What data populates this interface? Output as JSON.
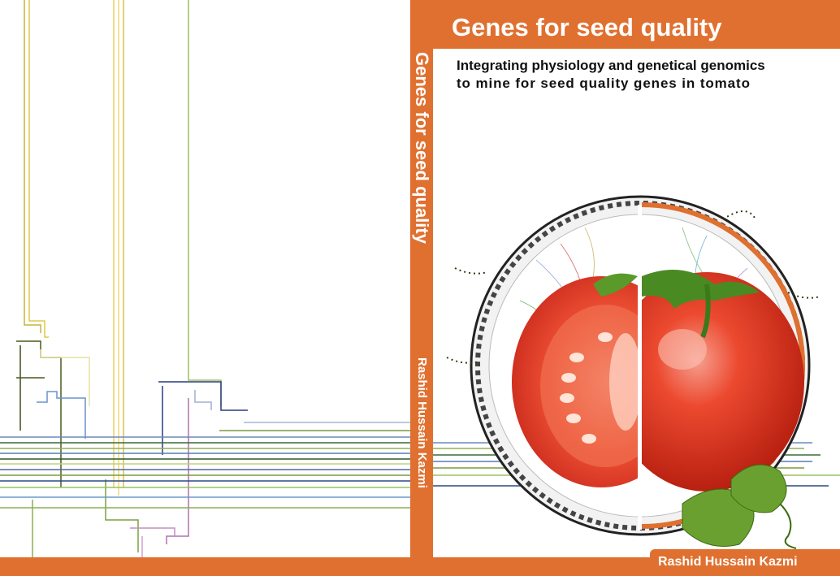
{
  "cover": {
    "title": "Genes for seed quality",
    "subtitle_line1": "Integrating physiology  and genetical genomics",
    "subtitle_line2": "to mine for seed quality genes in tomato",
    "spine_title": "Genes for seed quality",
    "spine_author": "Rashid Hussain Kazmi",
    "author": "Rashid Hussain Kazmi"
  },
  "colors": {
    "accent": "#e07030",
    "tomato_red": "#e8432a",
    "leaf_green": "#5a9a2a"
  },
  "icons": {
    "illustration": "tomato-illustration",
    "back_art": "genetic-map-lines"
  }
}
